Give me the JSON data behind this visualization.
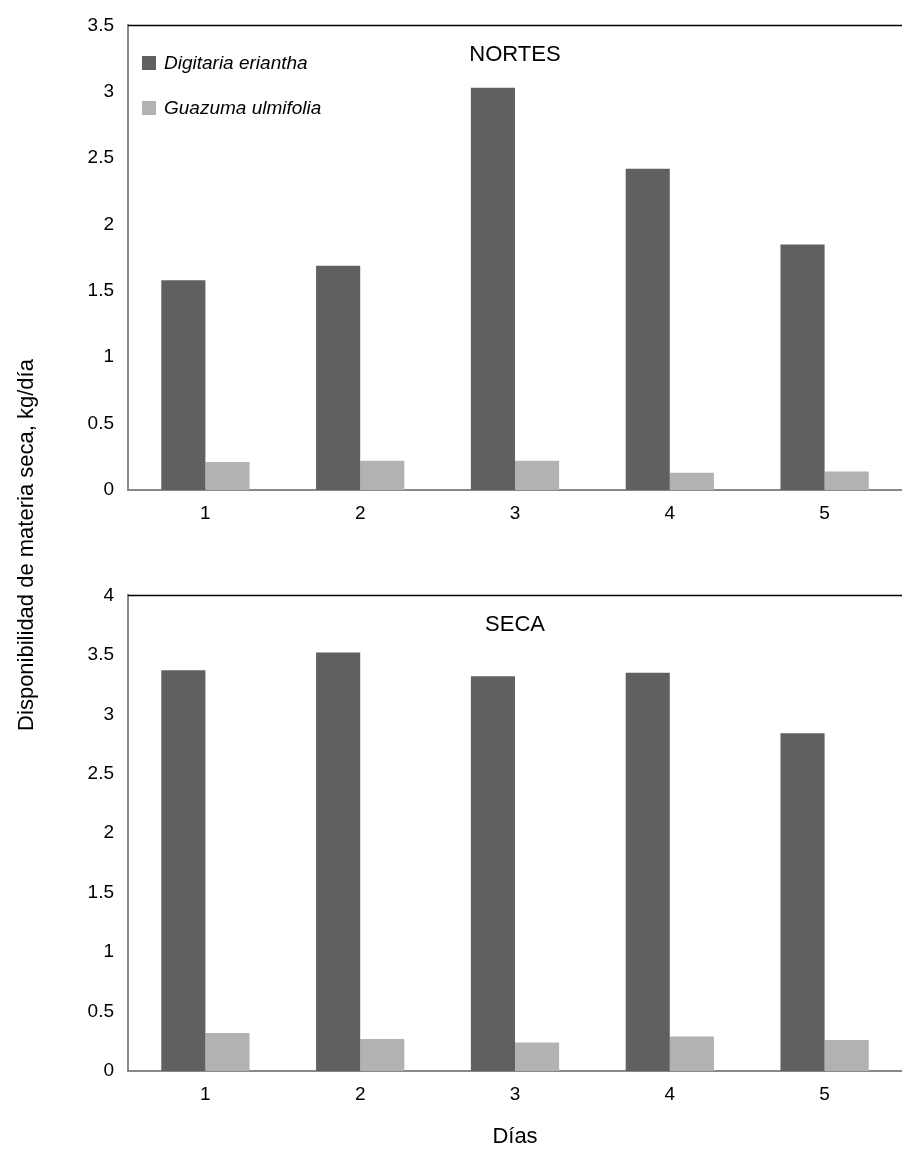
{
  "chart_data": [
    {
      "type": "bar",
      "title": "NORTES",
      "ylabel": "Disponibilidad de materia seca, kg/día",
      "categories": [
        "1",
        "2",
        "3",
        "4",
        "5"
      ],
      "series": [
        {
          "name": "Digitaria eriantha",
          "color": "#606060",
          "values": [
            1.58,
            1.69,
            3.03,
            2.42,
            1.85
          ]
        },
        {
          "name": "Guazuma ulmifolia",
          "color": "#b2b2b2",
          "values": [
            0.21,
            0.22,
            0.22,
            0.13,
            0.14
          ]
        }
      ],
      "ylim": [
        0,
        3.5
      ],
      "yticks": [
        0,
        0.5,
        1,
        1.5,
        2,
        2.5,
        3,
        3.5
      ],
      "grid": false,
      "legend": "top left"
    },
    {
      "type": "bar",
      "title": "SECA",
      "xlabel": "Días",
      "categories": [
        "1",
        "2",
        "3",
        "4",
        "5"
      ],
      "series": [
        {
          "color": "#606060",
          "values": [
            3.37,
            3.52,
            3.32,
            3.35,
            2.84
          ]
        },
        {
          "color": "#b2b2b2",
          "values": [
            0.32,
            0.27,
            0.24,
            0.29,
            0.26
          ]
        }
      ],
      "ylim": [
        0,
        4
      ],
      "yticks": [
        0,
        0.5,
        1,
        1.5,
        2,
        2.5,
        3,
        3.5,
        4
      ],
      "grid": false
    }
  ]
}
